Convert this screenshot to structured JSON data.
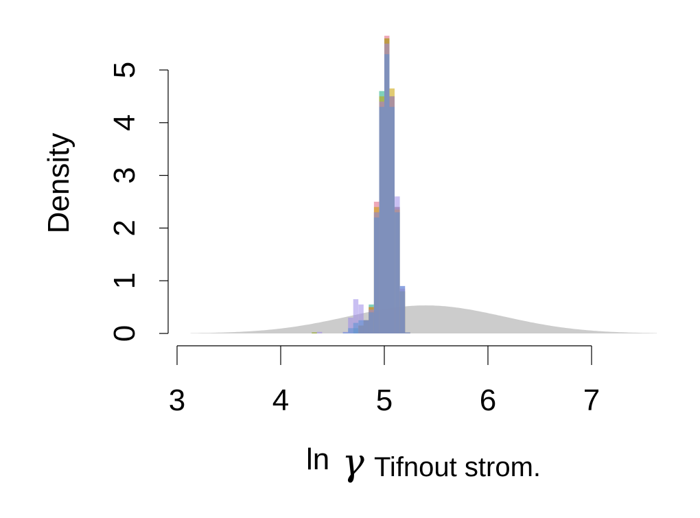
{
  "chart_data": {
    "type": "histogram",
    "xlabel_prefix": "ln",
    "xlabel_symbol": "γ",
    "xlabel_subscript": "Tifnout strom.",
    "ylabel": "Density",
    "xlim": [
      3,
      7
    ],
    "ylim": [
      0,
      5
    ],
    "x_ticks": [
      "3",
      "4",
      "5",
      "6",
      "7"
    ],
    "y_ticks": [
      "0",
      "1",
      "2",
      "3",
      "4",
      "5"
    ],
    "prior": {
      "color": "#cccccc",
      "mean": 5.4,
      "sd": 0.75,
      "x_range": [
        3.13,
        7.63
      ]
    },
    "bin_width": 0.05,
    "series": [
      {
        "color": "#2ab28c",
        "opacity": 0.6,
        "bins": [
          [
            4.3,
            0.02
          ],
          [
            4.7,
            0.1
          ],
          [
            4.75,
            0.15
          ],
          [
            4.8,
            0.25
          ],
          [
            4.85,
            0.55
          ],
          [
            4.9,
            2.3
          ],
          [
            4.95,
            4.6
          ],
          [
            5.0,
            5.6
          ],
          [
            5.05,
            4.5
          ],
          [
            5.1,
            2.4
          ],
          [
            5.15,
            0.8
          ],
          [
            5.2,
            0.02
          ]
        ]
      },
      {
        "color": "#e0607e",
        "opacity": 0.55,
        "bins": [
          [
            4.75,
            0.15
          ],
          [
            4.8,
            0.25
          ],
          [
            4.85,
            0.5
          ],
          [
            4.9,
            2.5
          ],
          [
            4.95,
            4.4
          ],
          [
            5.0,
            5.65
          ],
          [
            5.05,
            4.5
          ],
          [
            5.1,
            2.4
          ],
          [
            5.15,
            0.85
          ],
          [
            5.2,
            0.02
          ]
        ]
      },
      {
        "color": "#c8a000",
        "opacity": 0.55,
        "bins": [
          [
            4.3,
            0.02
          ],
          [
            4.75,
            0.15
          ],
          [
            4.8,
            0.25
          ],
          [
            4.85,
            0.5
          ],
          [
            4.9,
            2.4
          ],
          [
            4.95,
            4.5
          ],
          [
            5.0,
            5.6
          ],
          [
            5.05,
            4.65
          ],
          [
            5.1,
            2.35
          ],
          [
            5.15,
            0.8
          ],
          [
            5.2,
            0.02
          ]
        ]
      },
      {
        "color": "#9d8be8",
        "opacity": 0.55,
        "bins": [
          [
            4.35,
            0.03
          ],
          [
            4.6,
            0.03
          ],
          [
            4.65,
            0.3
          ],
          [
            4.7,
            0.65
          ],
          [
            4.75,
            0.55
          ],
          [
            4.8,
            0.25
          ],
          [
            4.85,
            0.45
          ],
          [
            4.9,
            2.3
          ],
          [
            4.95,
            4.4
          ],
          [
            5.0,
            5.5
          ],
          [
            5.05,
            4.5
          ],
          [
            5.1,
            2.6
          ],
          [
            5.15,
            0.9
          ],
          [
            5.2,
            0.02
          ]
        ]
      },
      {
        "color": "#5b8fd4",
        "opacity": 0.55,
        "bins": [
          [
            4.6,
            0.02
          ],
          [
            4.65,
            0.1
          ],
          [
            4.7,
            0.2
          ],
          [
            4.75,
            0.25
          ],
          [
            4.8,
            0.25
          ],
          [
            4.85,
            0.4
          ],
          [
            4.9,
            2.2
          ],
          [
            4.95,
            4.3
          ],
          [
            5.0,
            5.3
          ],
          [
            5.05,
            4.3
          ],
          [
            5.1,
            2.3
          ],
          [
            5.15,
            0.9
          ],
          [
            5.2,
            0.02
          ]
        ]
      }
    ]
  }
}
